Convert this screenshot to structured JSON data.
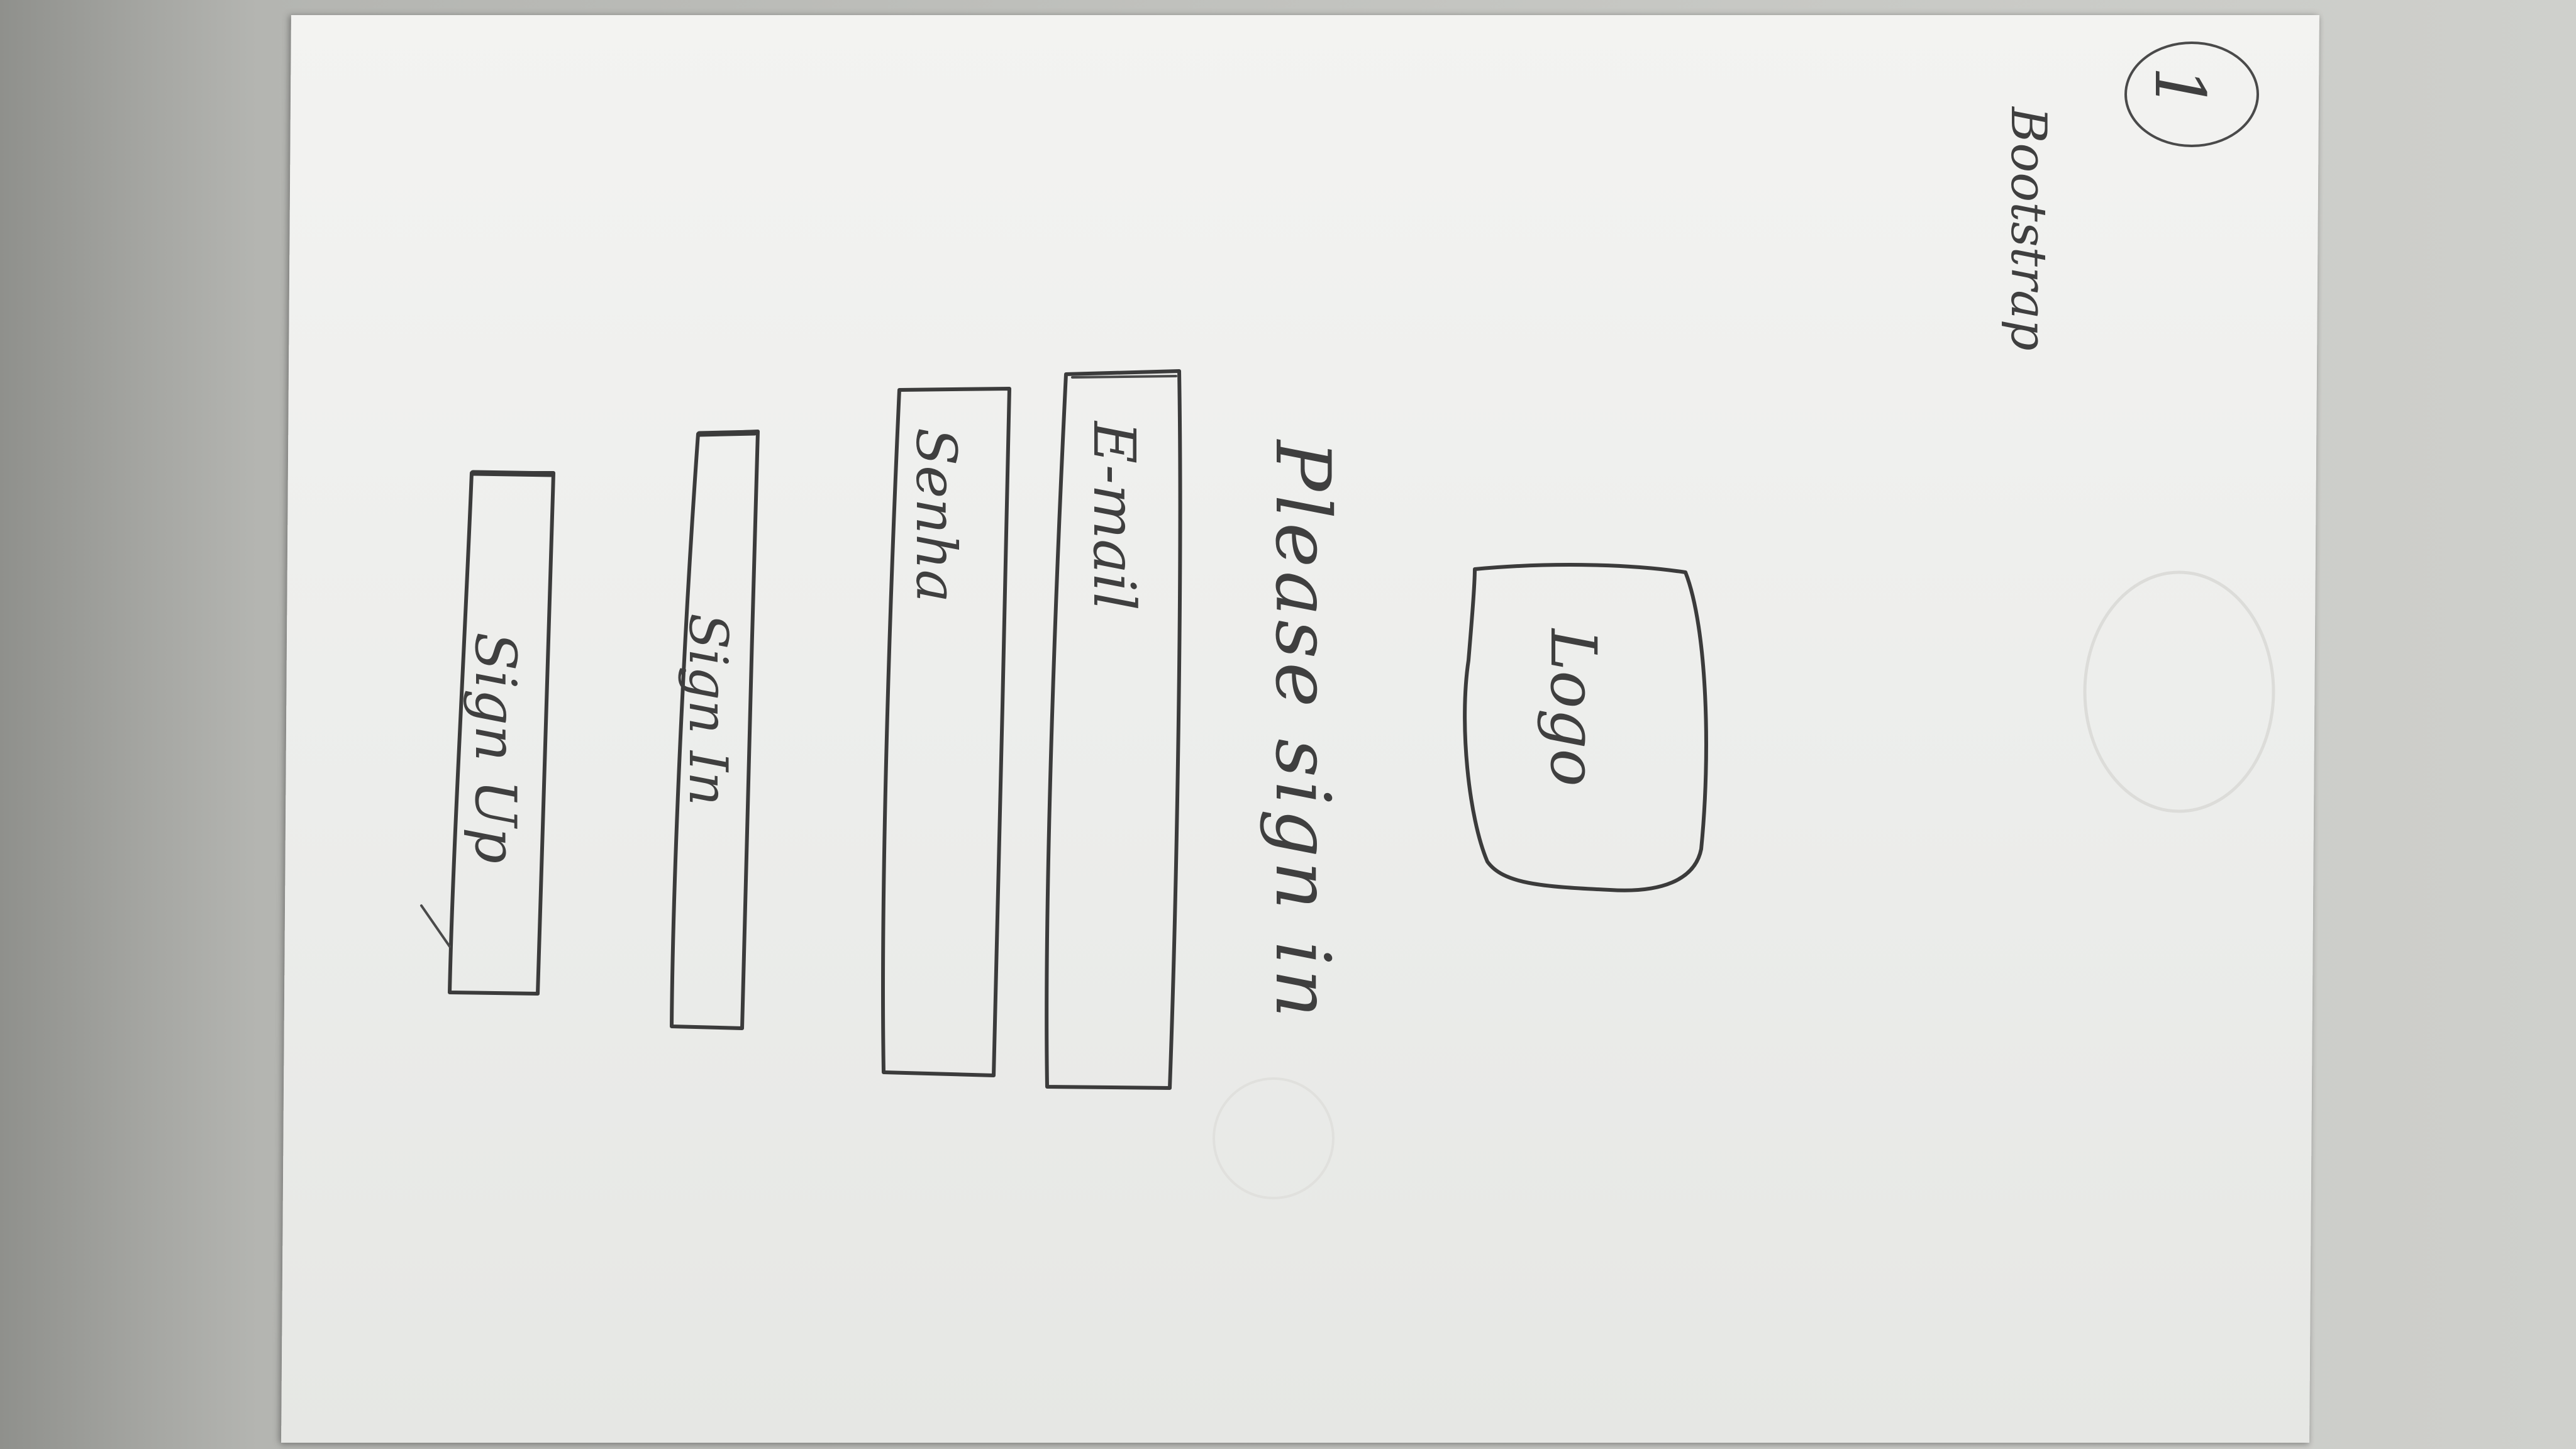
{
  "sketch": {
    "page_number": "1",
    "framework_note": "Bootstrap",
    "logo_label": "Logo",
    "heading": "Please sign in",
    "email_placeholder": "E-mail",
    "password_placeholder": "Senha",
    "sign_in_label": "Sign In",
    "sign_up_label": "Sign Up"
  }
}
